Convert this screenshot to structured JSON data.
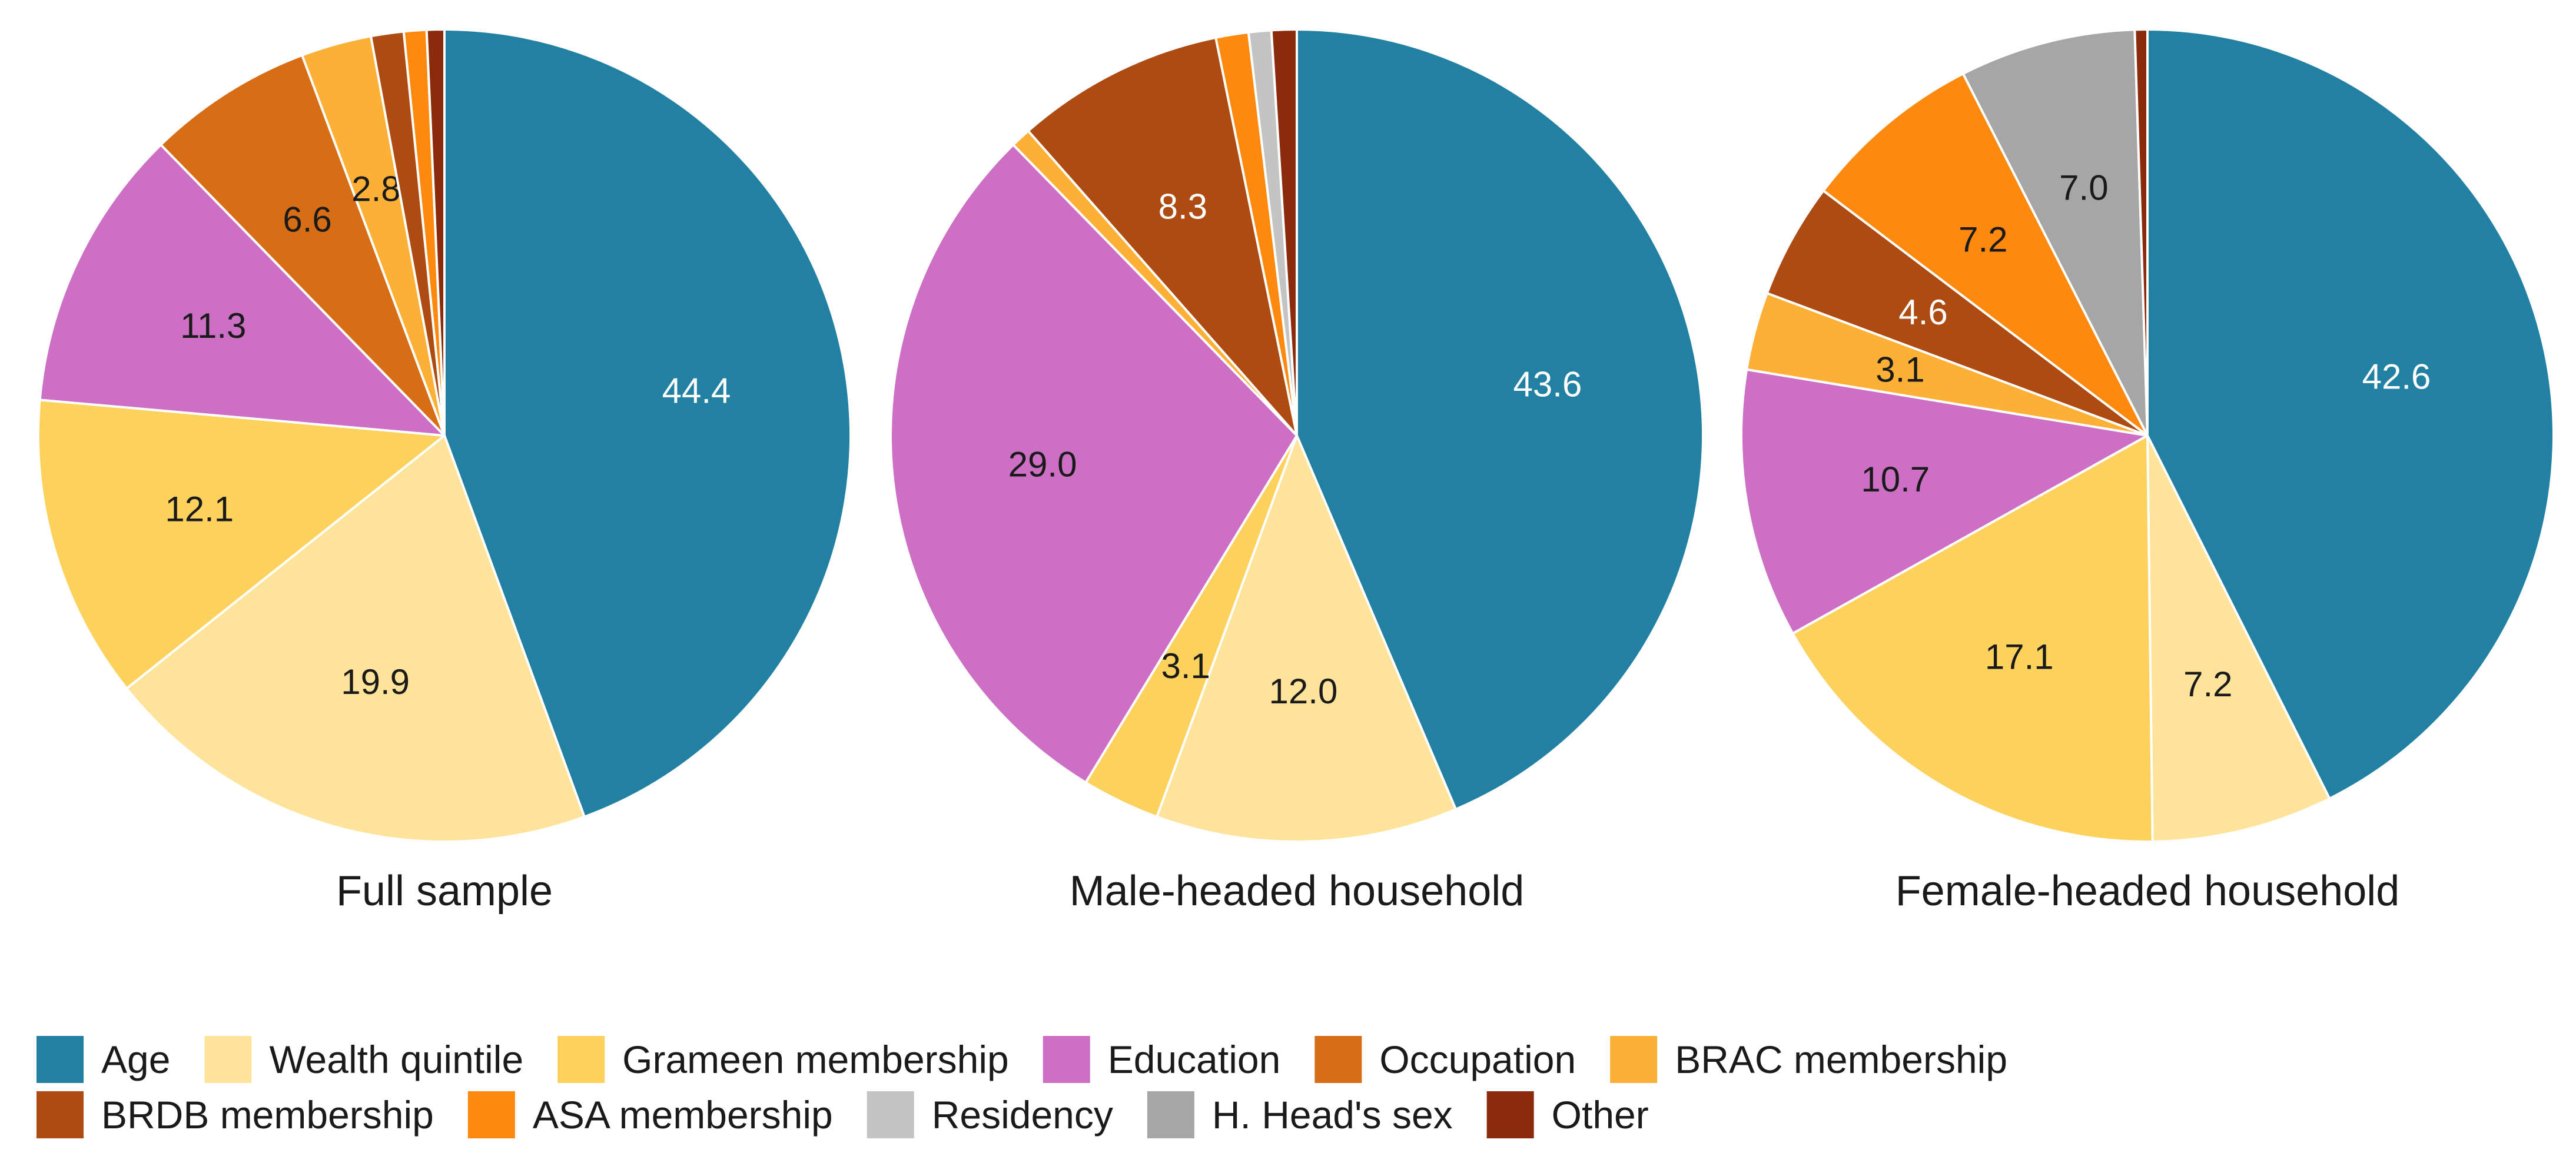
{
  "chart_data": {
    "type": "pie",
    "categories": [
      "Age",
      "Wealth quintile",
      "Grameen membership",
      "Education",
      "Occupation",
      "BRAC membership",
      "BRDB membership",
      "ASA membership",
      "Residency",
      "H. Head's sex",
      "Other"
    ],
    "colors": {
      "Age": "#2281a3",
      "Wealth quintile": "#fde49a",
      "Grameen membership": "#fdd25c",
      "Education": "#cc6fc5",
      "Occupation": "#d76d15",
      "BRAC membership": "#fdb036",
      "BRDB membership": "#ae4b12",
      "ASA membership": "#fd8a0e",
      "Residency": "#c4c4c4",
      "H. Head's sex": "#a6a6a6",
      "Other": "#8c2a0c"
    },
    "legend_position": "bottom",
    "pies": [
      {
        "name": "Full sample",
        "slices": [
          {
            "category": "Age",
            "value": 44.4,
            "label": "44.4"
          },
          {
            "category": "Wealth quintile",
            "value": 19.9,
            "label": "19.9"
          },
          {
            "category": "Grameen membership",
            "value": 12.1,
            "label": "12.1"
          },
          {
            "category": "Education",
            "value": 11.3,
            "label": "11.3"
          },
          {
            "category": "Occupation",
            "value": 6.6,
            "label": "6.6"
          },
          {
            "category": "BRAC membership",
            "value": 2.8,
            "label": "2.8"
          },
          {
            "category": "BRDB membership",
            "value": 1.3,
            "label": ""
          },
          {
            "category": "ASA membership",
            "value": 0.9,
            "label": ""
          },
          {
            "category": "Other",
            "value": 0.7,
            "label": ""
          }
        ]
      },
      {
        "name": "Male-headed household",
        "slices": [
          {
            "category": "Age",
            "value": 43.6,
            "label": "43.6"
          },
          {
            "category": "Wealth quintile",
            "value": 12.0,
            "label": "12.0"
          },
          {
            "category": "Grameen membership",
            "value": 3.1,
            "label": "3.1"
          },
          {
            "category": "Education",
            "value": 29.0,
            "label": "29.0"
          },
          {
            "category": "BRAC membership",
            "value": 0.8,
            "label": ""
          },
          {
            "category": "BRDB membership",
            "value": 8.3,
            "label": "8.3"
          },
          {
            "category": "ASA membership",
            "value": 1.3,
            "label": ""
          },
          {
            "category": "Residency",
            "value": 0.9,
            "label": ""
          },
          {
            "category": "Other",
            "value": 1.0,
            "label": ""
          }
        ]
      },
      {
        "name": "Female-headed household",
        "slices": [
          {
            "category": "Age",
            "value": 42.6,
            "label": "42.6"
          },
          {
            "category": "Wealth quintile",
            "value": 7.2,
            "label": "7.2"
          },
          {
            "category": "Grameen membership",
            "value": 17.1,
            "label": "17.1"
          },
          {
            "category": "Education",
            "value": 10.7,
            "label": "10.7"
          },
          {
            "category": "BRAC membership",
            "value": 3.1,
            "label": "3.1"
          },
          {
            "category": "BRDB membership",
            "value": 4.6,
            "label": "4.6"
          },
          {
            "category": "ASA membership",
            "value": 7.2,
            "label": "7.2"
          },
          {
            "category": "H. Head's sex",
            "value": 7.0,
            "label": "7.0"
          },
          {
            "category": "Other",
            "value": 0.5,
            "label": ""
          }
        ]
      }
    ],
    "legend": [
      [
        "Age",
        "Wealth quintile",
        "Grameen membership",
        "Education",
        "Occupation",
        "BRAC membership"
      ],
      [
        "BRDB membership",
        "ASA membership",
        "Residency",
        "H. Head's sex",
        "Other"
      ]
    ],
    "label_colors": {
      "Age": "#ffffff",
      "BRDB membership": "#ffffff",
      "default": "#1a1a1a"
    }
  }
}
